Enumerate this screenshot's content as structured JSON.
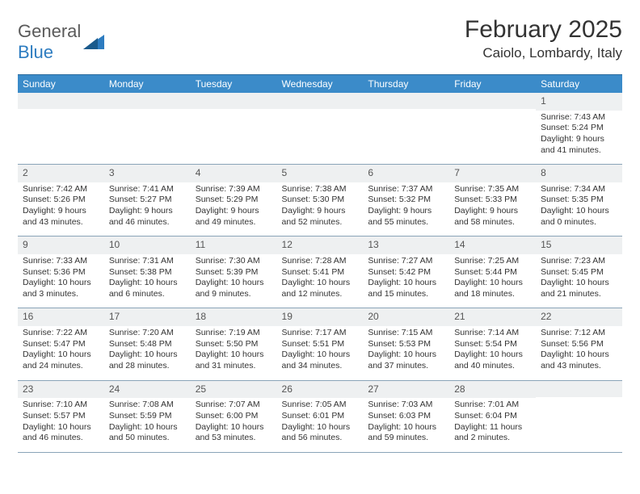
{
  "logo": {
    "text1": "General",
    "text2": "Blue"
  },
  "title": "February 2025",
  "location": "Caiolo, Lombardy, Italy",
  "colors": {
    "header_bg": "#3b8bc9",
    "header_text": "#ffffff",
    "daynum_bg": "#eef0f1",
    "border": "#8aa4b8",
    "logo_blue": "#2d7cc0"
  },
  "days_of_week": [
    "Sunday",
    "Monday",
    "Tuesday",
    "Wednesday",
    "Thursday",
    "Friday",
    "Saturday"
  ],
  "weeks": [
    [
      {
        "n": "",
        "sun": "",
        "set": "",
        "day": ""
      },
      {
        "n": "",
        "sun": "",
        "set": "",
        "day": ""
      },
      {
        "n": "",
        "sun": "",
        "set": "",
        "day": ""
      },
      {
        "n": "",
        "sun": "",
        "set": "",
        "day": ""
      },
      {
        "n": "",
        "sun": "",
        "set": "",
        "day": ""
      },
      {
        "n": "",
        "sun": "",
        "set": "",
        "day": ""
      },
      {
        "n": "1",
        "sun": "Sunrise: 7:43 AM",
        "set": "Sunset: 5:24 PM",
        "day": "Daylight: 9 hours and 41 minutes."
      }
    ],
    [
      {
        "n": "2",
        "sun": "Sunrise: 7:42 AM",
        "set": "Sunset: 5:26 PM",
        "day": "Daylight: 9 hours and 43 minutes."
      },
      {
        "n": "3",
        "sun": "Sunrise: 7:41 AM",
        "set": "Sunset: 5:27 PM",
        "day": "Daylight: 9 hours and 46 minutes."
      },
      {
        "n": "4",
        "sun": "Sunrise: 7:39 AM",
        "set": "Sunset: 5:29 PM",
        "day": "Daylight: 9 hours and 49 minutes."
      },
      {
        "n": "5",
        "sun": "Sunrise: 7:38 AM",
        "set": "Sunset: 5:30 PM",
        "day": "Daylight: 9 hours and 52 minutes."
      },
      {
        "n": "6",
        "sun": "Sunrise: 7:37 AM",
        "set": "Sunset: 5:32 PM",
        "day": "Daylight: 9 hours and 55 minutes."
      },
      {
        "n": "7",
        "sun": "Sunrise: 7:35 AM",
        "set": "Sunset: 5:33 PM",
        "day": "Daylight: 9 hours and 58 minutes."
      },
      {
        "n": "8",
        "sun": "Sunrise: 7:34 AM",
        "set": "Sunset: 5:35 PM",
        "day": "Daylight: 10 hours and 0 minutes."
      }
    ],
    [
      {
        "n": "9",
        "sun": "Sunrise: 7:33 AM",
        "set": "Sunset: 5:36 PM",
        "day": "Daylight: 10 hours and 3 minutes."
      },
      {
        "n": "10",
        "sun": "Sunrise: 7:31 AM",
        "set": "Sunset: 5:38 PM",
        "day": "Daylight: 10 hours and 6 minutes."
      },
      {
        "n": "11",
        "sun": "Sunrise: 7:30 AM",
        "set": "Sunset: 5:39 PM",
        "day": "Daylight: 10 hours and 9 minutes."
      },
      {
        "n": "12",
        "sun": "Sunrise: 7:28 AM",
        "set": "Sunset: 5:41 PM",
        "day": "Daylight: 10 hours and 12 minutes."
      },
      {
        "n": "13",
        "sun": "Sunrise: 7:27 AM",
        "set": "Sunset: 5:42 PM",
        "day": "Daylight: 10 hours and 15 minutes."
      },
      {
        "n": "14",
        "sun": "Sunrise: 7:25 AM",
        "set": "Sunset: 5:44 PM",
        "day": "Daylight: 10 hours and 18 minutes."
      },
      {
        "n": "15",
        "sun": "Sunrise: 7:23 AM",
        "set": "Sunset: 5:45 PM",
        "day": "Daylight: 10 hours and 21 minutes."
      }
    ],
    [
      {
        "n": "16",
        "sun": "Sunrise: 7:22 AM",
        "set": "Sunset: 5:47 PM",
        "day": "Daylight: 10 hours and 24 minutes."
      },
      {
        "n": "17",
        "sun": "Sunrise: 7:20 AM",
        "set": "Sunset: 5:48 PM",
        "day": "Daylight: 10 hours and 28 minutes."
      },
      {
        "n": "18",
        "sun": "Sunrise: 7:19 AM",
        "set": "Sunset: 5:50 PM",
        "day": "Daylight: 10 hours and 31 minutes."
      },
      {
        "n": "19",
        "sun": "Sunrise: 7:17 AM",
        "set": "Sunset: 5:51 PM",
        "day": "Daylight: 10 hours and 34 minutes."
      },
      {
        "n": "20",
        "sun": "Sunrise: 7:15 AM",
        "set": "Sunset: 5:53 PM",
        "day": "Daylight: 10 hours and 37 minutes."
      },
      {
        "n": "21",
        "sun": "Sunrise: 7:14 AM",
        "set": "Sunset: 5:54 PM",
        "day": "Daylight: 10 hours and 40 minutes."
      },
      {
        "n": "22",
        "sun": "Sunrise: 7:12 AM",
        "set": "Sunset: 5:56 PM",
        "day": "Daylight: 10 hours and 43 minutes."
      }
    ],
    [
      {
        "n": "23",
        "sun": "Sunrise: 7:10 AM",
        "set": "Sunset: 5:57 PM",
        "day": "Daylight: 10 hours and 46 minutes."
      },
      {
        "n": "24",
        "sun": "Sunrise: 7:08 AM",
        "set": "Sunset: 5:59 PM",
        "day": "Daylight: 10 hours and 50 minutes."
      },
      {
        "n": "25",
        "sun": "Sunrise: 7:07 AM",
        "set": "Sunset: 6:00 PM",
        "day": "Daylight: 10 hours and 53 minutes."
      },
      {
        "n": "26",
        "sun": "Sunrise: 7:05 AM",
        "set": "Sunset: 6:01 PM",
        "day": "Daylight: 10 hours and 56 minutes."
      },
      {
        "n": "27",
        "sun": "Sunrise: 7:03 AM",
        "set": "Sunset: 6:03 PM",
        "day": "Daylight: 10 hours and 59 minutes."
      },
      {
        "n": "28",
        "sun": "Sunrise: 7:01 AM",
        "set": "Sunset: 6:04 PM",
        "day": "Daylight: 11 hours and 2 minutes."
      },
      {
        "n": "",
        "sun": "",
        "set": "",
        "day": ""
      }
    ]
  ]
}
